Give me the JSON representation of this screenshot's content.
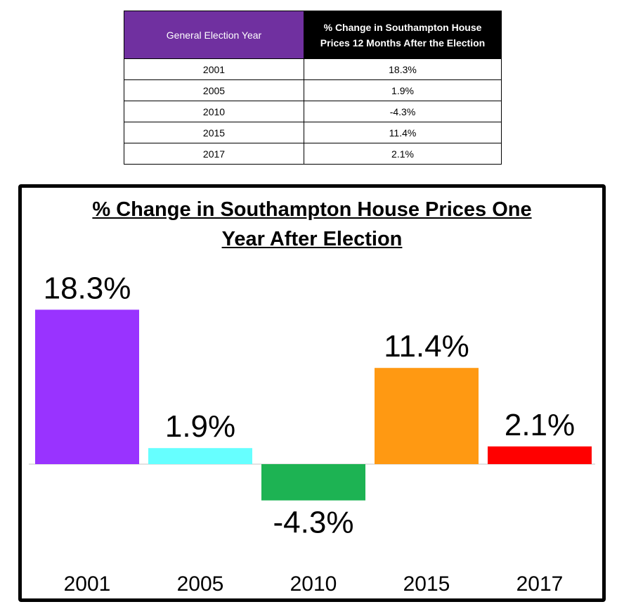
{
  "table": {
    "header_year": "General Election Year",
    "header_change": "% Change in Southampton House Prices 12 Months After the Election",
    "rows": [
      {
        "year": "2001",
        "change": "18.3%"
      },
      {
        "year": "2005",
        "change": "1.9%"
      },
      {
        "year": "2010",
        "change": "-4.3%"
      },
      {
        "year": "2015",
        "change": "11.4%"
      },
      {
        "year": "2017",
        "change": "2.1%"
      }
    ]
  },
  "colors": {
    "table_header_year_bg": "#7030a0",
    "table_header_change_bg": "#000000"
  },
  "chart_data": {
    "type": "bar",
    "title_line1": "% Change in Southampton House Prices One",
    "title_line2": "Year After Election",
    "categories": [
      "2001",
      "2005",
      "2010",
      "2015",
      "2017"
    ],
    "values": [
      18.3,
      1.9,
      -4.3,
      11.4,
      2.1
    ],
    "value_labels": [
      "18.3%",
      "1.9%",
      "-4.3%",
      "11.4%",
      "2.1%"
    ],
    "bar_colors": [
      "#9933ff",
      "#66ffff",
      "#1db353",
      "#ff9912",
      "#ff0000"
    ],
    "xlabel": "",
    "ylabel": "",
    "grid": false,
    "legend": false
  }
}
